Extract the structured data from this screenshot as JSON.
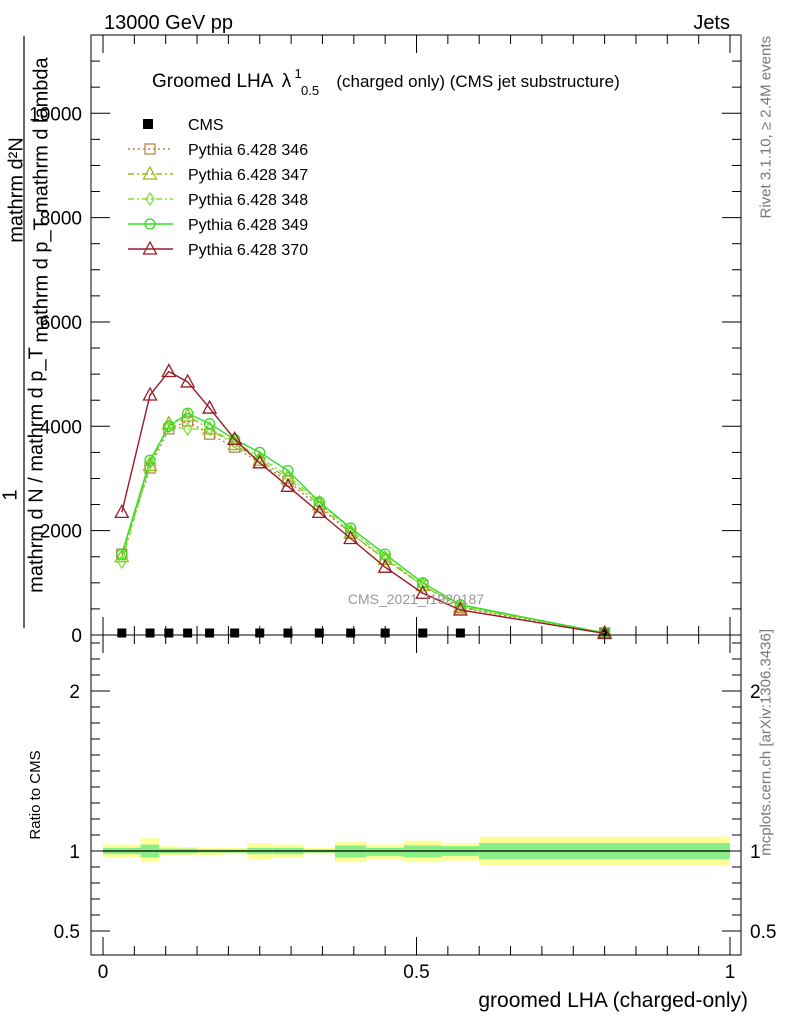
{
  "header": {
    "left": "13000 GeV pp",
    "right": "Jets",
    "right_side_top": "Rivet 3.1.10, ≥ 2.4M events",
    "right_side_bottom": "mcplots.cern.ch [arXiv:1306.3436]"
  },
  "chart_data": [
    {
      "type": "line",
      "title_main": "Groomed LHA",
      "title_lambda": "λ",
      "title_sup": "1",
      "title_sub": "0.5",
      "title_rest": "(charged only) (CMS jet substructure)",
      "ylabel_top": "mathrm d²N",
      "ylabel_top2": "mathrm d p_T mathrm d lambda",
      "ylabel_one": "1",
      "ylabel_bottom": "mathrm d N / mathrm d p_T",
      "watermark": "CMS_2021_I1920187",
      "xlim": [
        0,
        1
      ],
      "ylim": [
        0,
        11500
      ],
      "yticks": [
        0,
        2000,
        4000,
        6000,
        8000,
        10000
      ],
      "yticklabels": [
        "0",
        "2000",
        "4000",
        "6000",
        "8000",
        "10000"
      ],
      "legend_position": "top-left",
      "cms_label": "CMS",
      "cms_x": [
        0.03,
        0.075,
        0.105,
        0.135,
        0.17,
        0.21,
        0.25,
        0.295,
        0.345,
        0.395,
        0.45,
        0.51,
        0.57,
        0.8
      ],
      "cms_y": [
        0,
        0,
        0,
        0,
        0,
        0,
        0,
        0,
        0,
        0,
        0,
        0,
        0,
        0
      ],
      "series": [
        {
          "name": "Pythia 6.428 346",
          "color": "#b8864a",
          "marker": "square",
          "dash": "2,3",
          "x": [
            0.03,
            0.075,
            0.105,
            0.135,
            0.17,
            0.21,
            0.25,
            0.295,
            0.345,
            0.395,
            0.45,
            0.51,
            0.57,
            0.8
          ],
          "y": [
            1550,
            3200,
            3950,
            4100,
            3850,
            3600,
            3300,
            2950,
            2450,
            1950,
            1450,
            950,
            520,
            40
          ]
        },
        {
          "name": "Pythia 6.428 347",
          "color": "#9abb1e",
          "marker": "triangle",
          "dash": "6,3,2,3",
          "x": [
            0.03,
            0.075,
            0.105,
            0.135,
            0.17,
            0.21,
            0.25,
            0.295,
            0.345,
            0.395,
            0.45,
            0.51,
            0.57,
            0.8
          ],
          "y": [
            1500,
            3250,
            4050,
            4200,
            3950,
            3650,
            3350,
            3000,
            2500,
            1950,
            1450,
            950,
            540,
            40
          ]
        },
        {
          "name": "Pythia 6.428 348",
          "color": "#7ee03a",
          "marker": "diamond",
          "dash": "6,3,2,3",
          "x": [
            0.03,
            0.075,
            0.105,
            0.135,
            0.17,
            0.21,
            0.25,
            0.295,
            0.345,
            0.395,
            0.45,
            0.51,
            0.57,
            0.8
          ],
          "y": [
            1400,
            3300,
            4000,
            3950,
            3950,
            3700,
            3400,
            3050,
            2550,
            2000,
            1500,
            950,
            560,
            40
          ]
        },
        {
          "name": "Pythia 6.428 349",
          "color": "#33dd22",
          "marker": "circle",
          "dash": "",
          "x": [
            0.03,
            0.075,
            0.105,
            0.135,
            0.17,
            0.21,
            0.25,
            0.295,
            0.345,
            0.395,
            0.45,
            0.51,
            0.57,
            0.8
          ],
          "y": [
            1550,
            3350,
            4000,
            4250,
            4050,
            3750,
            3500,
            3150,
            2550,
            2050,
            1550,
            1000,
            580,
            40
          ]
        },
        {
          "name": "Pythia 6.428 370",
          "color": "#9b1a28",
          "marker": "triangle",
          "dash": "",
          "x": [
            0.03,
            0.075,
            0.105,
            0.135,
            0.17,
            0.21,
            0.25,
            0.295,
            0.345,
            0.395,
            0.45,
            0.51,
            0.57,
            0.8
          ],
          "y": [
            2350,
            4600,
            5050,
            4850,
            4350,
            3750,
            3300,
            2850,
            2350,
            1850,
            1300,
            800,
            480,
            30
          ]
        }
      ]
    },
    {
      "type": "area",
      "ylabel": "Ratio to CMS",
      "xlabel": "groomed LHA (charged-only)",
      "xlim": [
        0,
        1
      ],
      "ylim": [
        0.35,
        2.35
      ],
      "xticks": [
        0,
        0.5,
        1
      ],
      "xticklabels": [
        "0",
        "0.5",
        "1"
      ],
      "yticks": [
        0.5,
        1,
        2
      ],
      "yticklabels": [
        "0.5",
        "1",
        "2"
      ],
      "band_colors": {
        "outer": "#ffff99",
        "inner": "#88ee88",
        "line": "#000000"
      },
      "bins": [
        {
          "x0": 0.0,
          "x1": 0.06,
          "outer": [
            0.96,
            1.04
          ],
          "inner": [
            0.98,
            1.02
          ]
        },
        {
          "x0": 0.06,
          "x1": 0.09,
          "outer": [
            0.93,
            1.08
          ],
          "inner": [
            0.96,
            1.04
          ]
        },
        {
          "x0": 0.09,
          "x1": 0.12,
          "outer": [
            0.97,
            1.03
          ],
          "inner": [
            0.985,
            1.015
          ]
        },
        {
          "x0": 0.12,
          "x1": 0.15,
          "outer": [
            0.975,
            1.025
          ],
          "inner": [
            0.985,
            1.015
          ]
        },
        {
          "x0": 0.15,
          "x1": 0.19,
          "outer": [
            0.975,
            1.02
          ],
          "inner": [
            0.99,
            1.01
          ]
        },
        {
          "x0": 0.19,
          "x1": 0.23,
          "outer": [
            0.98,
            1.02
          ],
          "inner": [
            0.99,
            1.01
          ]
        },
        {
          "x0": 0.23,
          "x1": 0.27,
          "outer": [
            0.95,
            1.05
          ],
          "inner": [
            0.98,
            1.02
          ]
        },
        {
          "x0": 0.27,
          "x1": 0.32,
          "outer": [
            0.96,
            1.04
          ],
          "inner": [
            0.98,
            1.02
          ]
        },
        {
          "x0": 0.32,
          "x1": 0.37,
          "outer": [
            0.98,
            1.02
          ],
          "inner": [
            0.99,
            1.01
          ]
        },
        {
          "x0": 0.37,
          "x1": 0.42,
          "outer": [
            0.93,
            1.06
          ],
          "inner": [
            0.96,
            1.035
          ]
        },
        {
          "x0": 0.42,
          "x1": 0.48,
          "outer": [
            0.95,
            1.04
          ],
          "inner": [
            0.97,
            1.02
          ]
        },
        {
          "x0": 0.48,
          "x1": 0.54,
          "outer": [
            0.93,
            1.065
          ],
          "inner": [
            0.96,
            1.035
          ]
        },
        {
          "x0": 0.54,
          "x1": 0.6,
          "outer": [
            0.94,
            1.05
          ],
          "inner": [
            0.97,
            1.03
          ]
        },
        {
          "x0": 0.6,
          "x1": 1.0,
          "outer": [
            0.91,
            1.09
          ],
          "inner": [
            0.95,
            1.05
          ]
        }
      ]
    }
  ]
}
